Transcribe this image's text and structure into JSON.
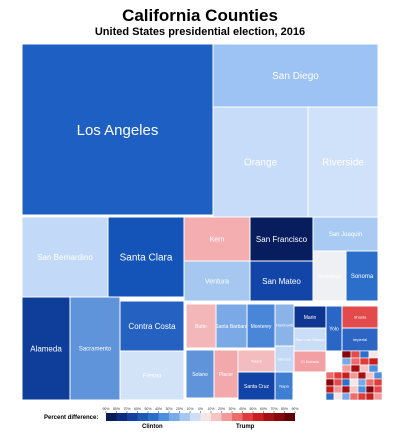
{
  "title": "California Counties",
  "subtitle": "United States presidential election, 2016",
  "legend": {
    "title": "Percent difference:",
    "left_label": "Clinton",
    "right_label": "Trump",
    "ticks": [
      "90%",
      "80%",
      "70%",
      "60%",
      "50%",
      "40%",
      "30%",
      "20%",
      "10%",
      "0%",
      "10%",
      "20%",
      "30%",
      "40%",
      "50%",
      "60%",
      "70%",
      "80%",
      "90%"
    ],
    "colors": [
      "#081d58",
      "#0c2c84",
      "#15419c",
      "#1f59b6",
      "#2b6fcb",
      "#4d8fdc",
      "#77aae6",
      "#a6c8f0",
      "#cbdff7",
      "#f7e6e6",
      "#f7c4c4",
      "#f29999",
      "#ec6c6c",
      "#e03c3c",
      "#c81e1e",
      "#a50f15",
      "#86070c",
      "#5e0208"
    ]
  },
  "chart_data": {
    "type": "treemap",
    "title": "California Counties",
    "subtitle": "United States presidential election, 2016",
    "color_scale": "percent difference Clinton (blue) vs Trump (red)",
    "items": [
      {
        "name": "Los Angeles",
        "margin_dem": 49,
        "color": "#1e5fc4"
      },
      {
        "name": "San Diego",
        "margin_dem": 20,
        "color": "#9dc3f4"
      },
      {
        "name": "Orange",
        "margin_dem": 9,
        "color": "#c6dcf8"
      },
      {
        "name": "Riverside",
        "margin_dem": 5,
        "color": "#cfe2fa"
      },
      {
        "name": "San Bernardino",
        "margin_dem": 11,
        "color": "#c2daf7"
      },
      {
        "name": "Santa Clara",
        "margin_dem": 52,
        "color": "#1453b8"
      },
      {
        "name": "Kern",
        "margin_dem": -14,
        "color": "#f4aeb0"
      },
      {
        "name": "San Francisco",
        "margin_dem": 75,
        "color": "#081d5e"
      },
      {
        "name": "San Joaquin",
        "margin_dem": 13,
        "color": "#a9cbf3"
      },
      {
        "name": "Ventura",
        "margin_dem": 18,
        "color": "#a6c8f0"
      },
      {
        "name": "San Mateo",
        "margin_dem": 57,
        "color": "#1345a9"
      },
      {
        "name": "Sonoma",
        "margin_dem": 46,
        "color": "#2b6fcb"
      },
      {
        "name": "Contra Costa",
        "margin_dem": 42,
        "color": "#2561c0"
      },
      {
        "name": "Alameda",
        "margin_dem": 68,
        "color": "#0f3e9a"
      },
      {
        "name": "Sacramento",
        "margin_dem": 24,
        "color": "#5f93da"
      },
      {
        "name": "Fresno",
        "margin_dem": 4,
        "color": "#d2e3f8"
      },
      {
        "name": "Stanislaus",
        "margin_dem": 0,
        "color": "#eef0f3"
      },
      {
        "name": "Santa Barbara",
        "margin_dem": 27,
        "color": "#7ba9e6"
      },
      {
        "name": "Monterey",
        "margin_dem": 36,
        "color": "#4a86d8"
      },
      {
        "name": "Solano",
        "margin_dem": 25,
        "color": "#5f94db"
      },
      {
        "name": "Placer",
        "margin_dem": -14,
        "color": "#f2a9ab"
      },
      {
        "name": "Santa Cruz",
        "margin_dem": 58,
        "color": "#1244a7"
      },
      {
        "name": "Marin",
        "margin_dem": 61,
        "color": "#0e3590"
      },
      {
        "name": "Yolo",
        "margin_dem": 41,
        "color": "#2a66c6"
      },
      {
        "name": "Napa",
        "margin_dem": 31,
        "color": "#3f7fd2"
      },
      {
        "name": "Imperial",
        "margin_dem": 42,
        "color": "#2c65c4"
      },
      {
        "name": "Butte",
        "margin_dem": -5,
        "color": "#f3b7b9"
      },
      {
        "name": "Shasta",
        "margin_dem": -41,
        "color": "#e24a4c"
      },
      {
        "name": "San Luis Obispo",
        "margin_dem": 6,
        "color": "#c9ddf6"
      },
      {
        "name": "Humboldt",
        "margin_dem": 22,
        "color": "#8ab3ea"
      },
      {
        "name": "El Dorado",
        "margin_dem": -16,
        "color": "#f2a0a3"
      },
      {
        "name": "Tulare",
        "margin_dem": -10,
        "color": "#f4bcbe"
      },
      {
        "name": "Merced",
        "margin_dem": 8,
        "color": "#c4d9f6"
      }
    ]
  }
}
